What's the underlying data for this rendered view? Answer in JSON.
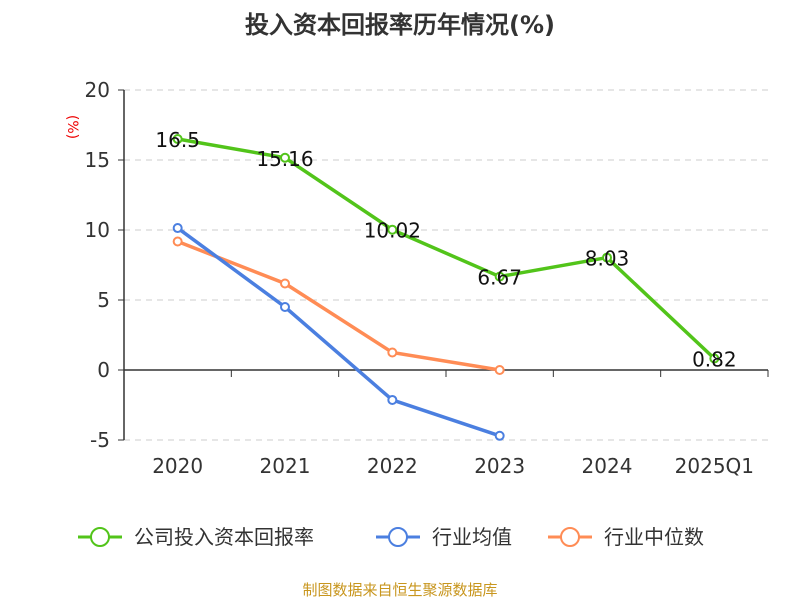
{
  "chart_data": {
    "type": "line",
    "title": "投入资本回报率历年情况(%)",
    "ylabel": "(%)",
    "categories": [
      "2020",
      "2021",
      "2022",
      "2023",
      "2024",
      "2025Q1"
    ],
    "ylim": [
      -5,
      20
    ],
    "yticks": [
      -5,
      0,
      5,
      10,
      15,
      20
    ],
    "grid": true,
    "legend_position": "bottom",
    "series": [
      {
        "name": "公司投入资本回报率",
        "color": "#52c41a",
        "values": [
          16.5,
          15.16,
          10.02,
          6.67,
          8.03,
          0.82
        ],
        "labels": [
          "16.5",
          "15.16",
          "10.02",
          "6.67",
          "8.03",
          "0.82"
        ]
      },
      {
        "name": "行业均值",
        "color": "#4b7fe0",
        "values": [
          10.14,
          4.5,
          -2.14,
          -4.7,
          null,
          null
        ]
      },
      {
        "name": "行业中位数",
        "color": "#ff8c55",
        "values": [
          9.18,
          6.18,
          1.25,
          0.0,
          null,
          null
        ]
      }
    ]
  },
  "source": "制图数据来自恒生聚源数据库"
}
